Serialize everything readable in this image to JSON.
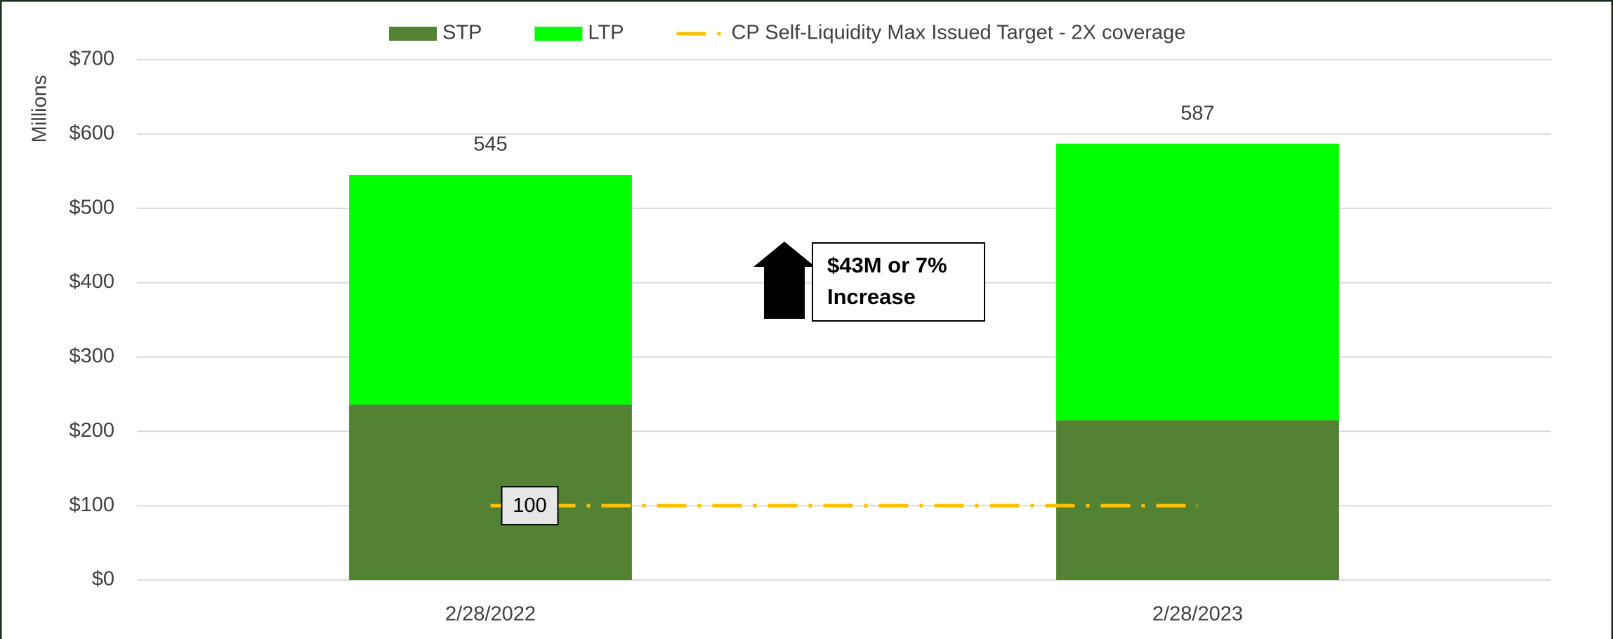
{
  "chart_data": {
    "type": "stacked_bar",
    "categories": [
      "2/28/2022",
      "2/28/2023"
    ],
    "series": [
      {
        "name": "STP",
        "color": "#548235",
        "values": [
          236,
          215
        ]
      },
      {
        "name": "LTP",
        "color": "#00ff00",
        "values": [
          309,
          372
        ]
      },
      {
        "name": "CP Self-Liquidity Max Issued Target - 2X coverage",
        "color": "#ffc000",
        "type": "line",
        "values": [
          100,
          100
        ],
        "value_labels": [
          "100",
          null
        ]
      }
    ],
    "total_labels": [
      545,
      587
    ],
    "y_axis_label": "Millions",
    "ylim": [
      0,
      700
    ],
    "yticks": [
      {
        "value": 0,
        "label": "$0"
      },
      {
        "value": 100,
        "label": "$100"
      },
      {
        "value": 200,
        "label": "$200"
      },
      {
        "value": 300,
        "label": "$300"
      },
      {
        "value": 400,
        "label": "$400"
      },
      {
        "value": 500,
        "label": "$500"
      },
      {
        "value": 600,
        "label": "$600"
      },
      {
        "value": 700,
        "label": "$700"
      }
    ],
    "grid": true,
    "legend": "top",
    "annotation": [
      "$43M or 7%",
      "Increase"
    ]
  }
}
